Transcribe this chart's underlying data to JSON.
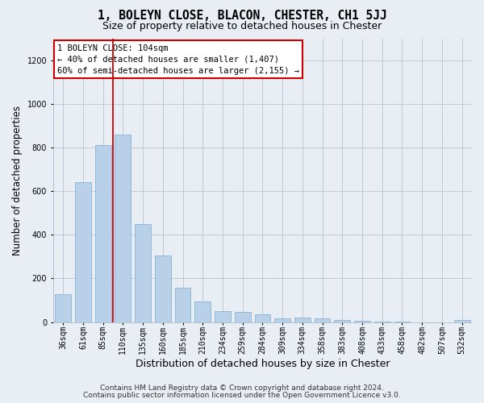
{
  "title": "1, BOLEYN CLOSE, BLACON, CHESTER, CH1 5JJ",
  "subtitle": "Size of property relative to detached houses in Chester",
  "xlabel": "Distribution of detached houses by size in Chester",
  "ylabel": "Number of detached properties",
  "categories": [
    "36sqm",
    "61sqm",
    "85sqm",
    "110sqm",
    "135sqm",
    "160sqm",
    "185sqm",
    "210sqm",
    "234sqm",
    "259sqm",
    "284sqm",
    "309sqm",
    "334sqm",
    "358sqm",
    "383sqm",
    "408sqm",
    "433sqm",
    "458sqm",
    "482sqm",
    "507sqm",
    "532sqm"
  ],
  "values": [
    128,
    640,
    810,
    858,
    447,
    305,
    158,
    93,
    50,
    47,
    34,
    15,
    20,
    17,
    10,
    5,
    3,
    3,
    0,
    0,
    10
  ],
  "bar_color": "#b8d0e8",
  "bar_edge_color": "#7aadd0",
  "red_line_color": "#cc0000",
  "red_line_x": 2.5,
  "annotation_text": "1 BOLEYN CLOSE: 104sqm\n← 40% of detached houses are smaller (1,407)\n60% of semi-detached houses are larger (2,155) →",
  "annotation_box_facecolor": "#ffffff",
  "annotation_box_edgecolor": "#cc0000",
  "ylim": [
    0,
    1300
  ],
  "yticks": [
    0,
    200,
    400,
    600,
    800,
    1000,
    1200
  ],
  "bg_color": "#e8eef4",
  "title_fontsize": 10.5,
  "subtitle_fontsize": 9,
  "ylabel_fontsize": 8.5,
  "xlabel_fontsize": 9,
  "tick_fontsize": 7,
  "annot_fontsize": 7.5,
  "footer_fontsize": 6.5,
  "footer_line1": "Contains HM Land Registry data © Crown copyright and database right 2024.",
  "footer_line2": "Contains public sector information licensed under the Open Government Licence v3.0."
}
